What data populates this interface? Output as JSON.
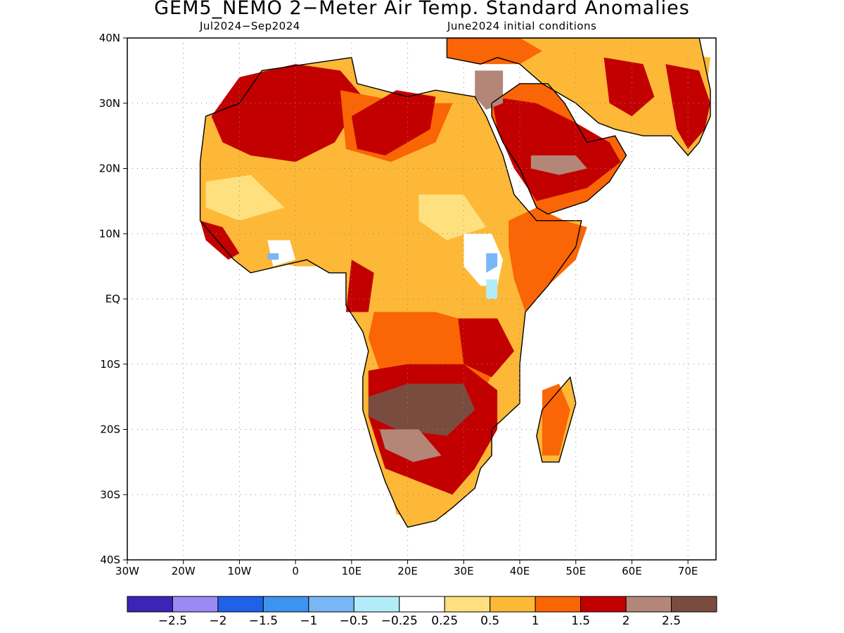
{
  "title": "GEM5_NEMO 2−Meter Air Temp. Standard Anomalies",
  "subtitle_left": "Jul2024−Sep2024",
  "subtitle_right": "June2024 initial conditions",
  "lat_labels": [
    {
      "lat": 40,
      "label": "40N"
    },
    {
      "lat": 30,
      "label": "30N"
    },
    {
      "lat": 20,
      "label": "20N"
    },
    {
      "lat": 10,
      "label": "10N"
    },
    {
      "lat": 0,
      "label": "EQ"
    },
    {
      "lat": -10,
      "label": "10S"
    },
    {
      "lat": -20,
      "label": "20S"
    },
    {
      "lat": -30,
      "label": "30S"
    },
    {
      "lat": -40,
      "label": "40S"
    }
  ],
  "lon_labels": [
    {
      "lon": -30,
      "label": "30W"
    },
    {
      "lon": -20,
      "label": "20W"
    },
    {
      "lon": -10,
      "label": "10W"
    },
    {
      "lon": 0,
      "label": "0"
    },
    {
      "lon": 10,
      "label": "10E"
    },
    {
      "lon": 20,
      "label": "20E"
    },
    {
      "lon": 30,
      "label": "30E"
    },
    {
      "lon": 40,
      "label": "40E"
    },
    {
      "lon": 50,
      "label": "50E"
    },
    {
      "lon": 60,
      "label": "60E"
    },
    {
      "lon": 70,
      "label": "70E"
    }
  ],
  "map_extent": {
    "lon": [
      -30,
      75
    ],
    "lat": [
      -40,
      40
    ]
  },
  "colorbar": {
    "colors": [
      "#3b24b6",
      "#9b89f5",
      "#1f62e8",
      "#3d94f0",
      "#79b6f5",
      "#b3ecf9",
      "#ffffff",
      "#ffe07f",
      "#fdb837",
      "#fa6505",
      "#c30000",
      "#b48678",
      "#7a4c40"
    ],
    "labels": [
      "−2.5",
      "−2",
      "−1.5",
      "−1",
      "−0.5",
      "−0.25",
      "0.25",
      "0.5",
      "1",
      "1.5",
      "2",
      "2.5"
    ]
  },
  "regions": [
    {
      "name": "sahara-west-red",
      "color": "#c30000",
      "points": [
        [
          -15,
          28
        ],
        [
          -10,
          34
        ],
        [
          0,
          36
        ],
        [
          8,
          35
        ],
        [
          12,
          31
        ],
        [
          7,
          24
        ],
        [
          0,
          21
        ],
        [
          -8,
          22
        ],
        [
          -13,
          24
        ]
      ]
    },
    {
      "name": "sahara-central-orange",
      "color": "#fa6505",
      "points": [
        [
          8,
          32
        ],
        [
          20,
          30
        ],
        [
          28,
          30
        ],
        [
          25,
          24
        ],
        [
          17,
          21
        ],
        [
          9,
          23
        ]
      ]
    },
    {
      "name": "sahara-east-red",
      "color": "#c30000",
      "points": [
        [
          10,
          28
        ],
        [
          18,
          32
        ],
        [
          25,
          31
        ],
        [
          24,
          26
        ],
        [
          16,
          22
        ],
        [
          11,
          23
        ]
      ]
    },
    {
      "name": "sahel-light-orange",
      "color": "#fdb837",
      "points": [
        [
          -17,
          20
        ],
        [
          -10,
          20
        ],
        [
          0,
          18
        ],
        [
          12,
          17
        ],
        [
          22,
          18
        ],
        [
          35,
          15
        ],
        [
          38,
          10
        ],
        [
          33,
          5
        ],
        [
          25,
          3
        ],
        [
          15,
          5
        ],
        [
          8,
          5
        ],
        [
          0,
          5
        ],
        [
          -10,
          7
        ],
        [
          -16,
          12
        ]
      ]
    },
    {
      "name": "sahel-yellow",
      "color": "#ffe07f",
      "points": [
        [
          -16,
          18
        ],
        [
          -8,
          19
        ],
        [
          -2,
          14
        ],
        [
          -10,
          12
        ],
        [
          -16,
          14
        ]
      ]
    },
    {
      "name": "sahel-yellow-east",
      "color": "#ffe07f",
      "points": [
        [
          22,
          16
        ],
        [
          30,
          16
        ],
        [
          34,
          11
        ],
        [
          27,
          9
        ],
        [
          22,
          12
        ]
      ]
    },
    {
      "name": "guinea-white",
      "color": "#ffffff",
      "points": [
        [
          -5,
          9
        ],
        [
          -1,
          9
        ],
        [
          0,
          6
        ],
        [
          -4,
          5
        ]
      ]
    },
    {
      "name": "guinea-blue",
      "color": "#79b6f5",
      "points": [
        [
          -5,
          7
        ],
        [
          -3,
          7
        ],
        [
          -3,
          6
        ],
        [
          -5,
          6
        ]
      ]
    },
    {
      "name": "west-coast-red",
      "color": "#c30000",
      "points": [
        [
          -17,
          12
        ],
        [
          -13,
          11
        ],
        [
          -10,
          7
        ],
        [
          -12,
          6
        ],
        [
          -16,
          9
        ]
      ]
    },
    {
      "name": "central-red",
      "color": "#c30000",
      "points": [
        [
          10,
          6
        ],
        [
          14,
          4
        ],
        [
          13,
          -2
        ],
        [
          9,
          -2
        ]
      ]
    },
    {
      "name": "east-africa-white",
      "color": "#ffffff",
      "points": [
        [
          30,
          10
        ],
        [
          35,
          10
        ],
        [
          37,
          6
        ],
        [
          36,
          2
        ],
        [
          33,
          2
        ],
        [
          30,
          5
        ]
      ]
    },
    {
      "name": "east-africa-blue",
      "color": "#79b6f5",
      "points": [
        [
          34,
          7
        ],
        [
          36,
          7
        ],
        [
          36,
          5
        ],
        [
          34,
          4
        ]
      ]
    },
    {
      "name": "kenya-blue",
      "color": "#b3ecf9",
      "points": [
        [
          34,
          3
        ],
        [
          36,
          3
        ],
        [
          36,
          0
        ],
        [
          34,
          0
        ]
      ]
    },
    {
      "name": "central-orange",
      "color": "#fa6505",
      "points": [
        [
          14,
          -2
        ],
        [
          25,
          -2
        ],
        [
          33,
          -4
        ],
        [
          36,
          -10
        ],
        [
          33,
          -15
        ],
        [
          25,
          -12
        ],
        [
          15,
          -11
        ],
        [
          13,
          -6
        ]
      ]
    },
    {
      "name": "east-coast-red",
      "color": "#c30000",
      "points": [
        [
          29,
          -3
        ],
        [
          36,
          -3
        ],
        [
          39,
          -8
        ],
        [
          35,
          -12
        ],
        [
          30,
          -10
        ]
      ]
    },
    {
      "name": "horn-orange",
      "color": "#fa6505",
      "points": [
        [
          38,
          12
        ],
        [
          43,
          14
        ],
        [
          48,
          12
        ],
        [
          52,
          11
        ],
        [
          50,
          6
        ],
        [
          45,
          2
        ],
        [
          41,
          -2
        ],
        [
          39,
          3
        ],
        [
          38,
          8
        ]
      ]
    },
    {
      "name": "southern-red",
      "color": "#c30000",
      "points": [
        [
          13,
          -11
        ],
        [
          20,
          -10
        ],
        [
          30,
          -10
        ],
        [
          36,
          -14
        ],
        [
          36,
          -20
        ],
        [
          32,
          -26
        ],
        [
          28,
          -30
        ],
        [
          22,
          -28
        ],
        [
          16,
          -26
        ],
        [
          13,
          -18
        ]
      ]
    },
    {
      "name": "southern-brown",
      "color": "#7a4c40",
      "points": [
        [
          13,
          -15
        ],
        [
          20,
          -13
        ],
        [
          30,
          -13
        ],
        [
          32,
          -17
        ],
        [
          27,
          -21
        ],
        [
          18,
          -20
        ],
        [
          13,
          -18
        ]
      ]
    },
    {
      "name": "southern-tan",
      "color": "#b48678",
      "points": [
        [
          15,
          -20
        ],
        [
          22,
          -20
        ],
        [
          26,
          -24
        ],
        [
          21,
          -25
        ],
        [
          16,
          -23
        ]
      ]
    },
    {
      "name": "cape-orange",
      "color": "#fdb837",
      "points": [
        [
          17,
          -29
        ],
        [
          22,
          -28
        ],
        [
          27,
          -30
        ],
        [
          27,
          -33
        ],
        [
          22,
          -34
        ],
        [
          18,
          -33
        ]
      ]
    },
    {
      "name": "madagascar-red",
      "color": "#fa6505",
      "points": [
        [
          44,
          -14
        ],
        [
          47,
          -13
        ],
        [
          49,
          -17
        ],
        [
          47,
          -24
        ],
        [
          44,
          -24
        ]
      ]
    },
    {
      "name": "arabia-red",
      "color": "#c30000",
      "points": [
        [
          35,
          31
        ],
        [
          43,
          30
        ],
        [
          50,
          27
        ],
        [
          56,
          24
        ],
        [
          58,
          21
        ],
        [
          52,
          17
        ],
        [
          43,
          15
        ],
        [
          39,
          20
        ],
        [
          36,
          26
        ]
      ]
    },
    {
      "name": "arabia-tan",
      "color": "#b48678",
      "points": [
        [
          42,
          22
        ],
        [
          50,
          22
        ],
        [
          52,
          20
        ],
        [
          47,
          19
        ],
        [
          42,
          20
        ]
      ]
    },
    {
      "name": "middle-east-light",
      "color": "#fdb837",
      "points": [
        [
          45,
          38
        ],
        [
          55,
          39
        ],
        [
          65,
          38
        ],
        [
          74,
          37
        ],
        [
          73,
          30
        ],
        [
          66,
          27
        ],
        [
          60,
          28
        ],
        [
          53,
          31
        ],
        [
          46,
          33
        ]
      ]
    },
    {
      "name": "iran-red",
      "color": "#c30000",
      "points": [
        [
          55,
          37
        ],
        [
          62,
          36
        ],
        [
          64,
          31
        ],
        [
          60,
          28
        ],
        [
          56,
          30
        ]
      ]
    },
    {
      "name": "india-red",
      "color": "#c30000",
      "points": [
        [
          66,
          36
        ],
        [
          72,
          35
        ],
        [
          74,
          30
        ],
        [
          73,
          26
        ],
        [
          70,
          23
        ],
        [
          68,
          26
        ]
      ]
    },
    {
      "name": "turkey-orange",
      "color": "#fa6505",
      "points": [
        [
          27,
          40
        ],
        [
          40,
          40
        ],
        [
          44,
          38
        ],
        [
          40,
          36
        ],
        [
          33,
          36
        ],
        [
          27,
          37
        ]
      ]
    },
    {
      "name": "levant-tan",
      "color": "#b48678",
      "points": [
        [
          32,
          35
        ],
        [
          37,
          35
        ],
        [
          37,
          30
        ],
        [
          34,
          29
        ],
        [
          32,
          31
        ]
      ]
    }
  ],
  "land": [
    [
      -17,
      21
    ],
    [
      -16,
      28
    ],
    [
      -10,
      30
    ],
    [
      -6,
      35
    ],
    [
      2,
      36
    ],
    [
      10,
      37
    ],
    [
      11,
      33
    ],
    [
      20,
      31
    ],
    [
      25,
      32
    ],
    [
      32,
      31
    ],
    [
      34,
      28
    ],
    [
      37,
      22
    ],
    [
      39,
      16
    ],
    [
      43,
      12
    ],
    [
      51,
      12
    ],
    [
      50,
      8
    ],
    [
      45,
      2
    ],
    [
      41,
      -2
    ],
    [
      40,
      -10
    ],
    [
      40,
      -16
    ],
    [
      35,
      -20
    ],
    [
      35,
      -24
    ],
    [
      33,
      -26
    ],
    [
      32,
      -29
    ],
    [
      28,
      -32
    ],
    [
      25,
      -34
    ],
    [
      20,
      -35
    ],
    [
      18,
      -32
    ],
    [
      16,
      -28
    ],
    [
      14,
      -23
    ],
    [
      12,
      -17
    ],
    [
      12,
      -12
    ],
    [
      13,
      -8
    ],
    [
      12,
      -5
    ],
    [
      9,
      -1
    ],
    [
      9,
      4
    ],
    [
      6,
      4
    ],
    [
      2,
      6
    ],
    [
      -3,
      5
    ],
    [
      -8,
      4
    ],
    [
      -11,
      6
    ],
    [
      -14,
      9
    ],
    [
      -17,
      12
    ]
  ],
  "madagascar": [
    [
      49,
      -12
    ],
    [
      50,
      -16
    ],
    [
      47,
      -25
    ],
    [
      44,
      -25
    ],
    [
      43,
      -21
    ],
    [
      44,
      -17
    ],
    [
      47,
      -14
    ]
  ],
  "arabia": [
    [
      35,
      30
    ],
    [
      35,
      28
    ],
    [
      37,
      24
    ],
    [
      40,
      20
    ],
    [
      43,
      14
    ],
    [
      45,
      13
    ],
    [
      52,
      15
    ],
    [
      56,
      18
    ],
    [
      59,
      22
    ],
    [
      57,
      25
    ],
    [
      52,
      24
    ],
    [
      50,
      27
    ],
    [
      48,
      30
    ],
    [
      45,
      33
    ],
    [
      40,
      33
    ]
  ],
  "asia": [
    [
      27,
      40
    ],
    [
      44,
      40
    ],
    [
      52,
      40
    ],
    [
      60,
      40
    ],
    [
      72,
      40
    ],
    [
      73,
      36
    ],
    [
      74,
      32
    ],
    [
      74,
      28
    ],
    [
      72,
      24
    ],
    [
      70,
      22
    ],
    [
      67,
      25
    ],
    [
      62,
      25
    ],
    [
      57,
      26
    ],
    [
      54,
      27
    ],
    [
      50,
      30
    ],
    [
      48,
      31
    ],
    [
      44,
      33
    ],
    [
      40,
      36
    ],
    [
      36,
      37
    ],
    [
      33,
      36
    ],
    [
      27,
      37
    ]
  ]
}
